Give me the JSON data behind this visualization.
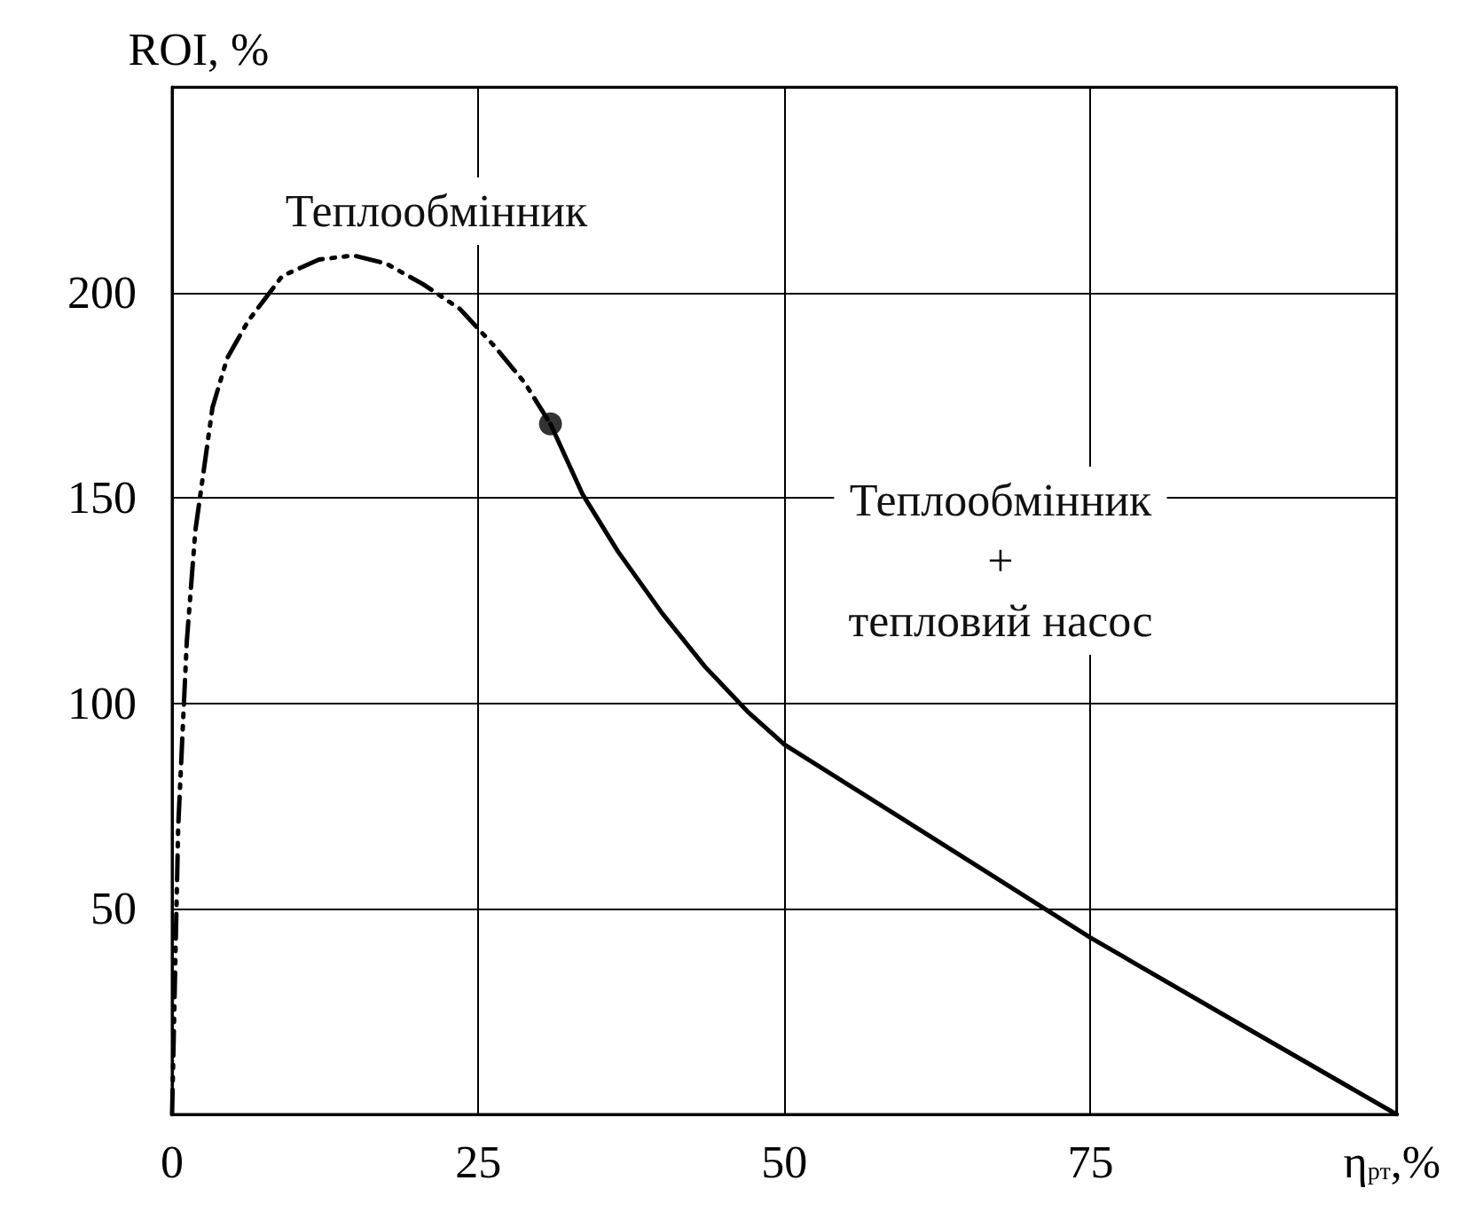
{
  "chart_data": {
    "type": "line",
    "xlabel": "η$_{рт}$,%",
    "ylabel": "ROI, %",
    "xlim": [
      0,
      100
    ],
    "ylim": [
      0,
      250
    ],
    "xticks": [
      0,
      25,
      50,
      75
    ],
    "yticks": [
      {
        "value": 0,
        "label": null
      },
      50,
      100,
      150,
      200,
      {
        "value": 250,
        "label": null
      }
    ],
    "grid": true,
    "series": [
      {
        "color": "#000000",
        "line_style": "dashed",
        "marker": "none",
        "x": [
          0,
          0.5,
          1.2,
          1.9,
          3.3,
          4.5,
          6.2,
          9,
          12,
          14.8,
          17.5,
          20.5,
          23.5,
          26.3,
          28.8,
          30.9
        ],
        "values": [
          0,
          70,
          115,
          142,
          172,
          184,
          193,
          204,
          208,
          209,
          207,
          202,
          196,
          187,
          178,
          168
        ]
      },
      {
        "color": "#000000",
        "line_style": "solid",
        "marker": "none",
        "x": [
          30.9,
          33.5,
          36.4,
          40,
          43.5,
          47,
          50,
          58,
          66.5,
          75,
          86.6,
          100
        ],
        "values": [
          168,
          151,
          137,
          122,
          109,
          98,
          90,
          75,
          59,
          43,
          23,
          0
        ]
      },
      {
        "type": "scatter",
        "color": "#000000",
        "marker": "circle",
        "x": [
          30.9
        ],
        "values": [
          168
        ]
      }
    ],
    "annotations": [
      "Теплообмінник",
      "Теплообмінник\n+\nтепловий насос"
    ]
  }
}
